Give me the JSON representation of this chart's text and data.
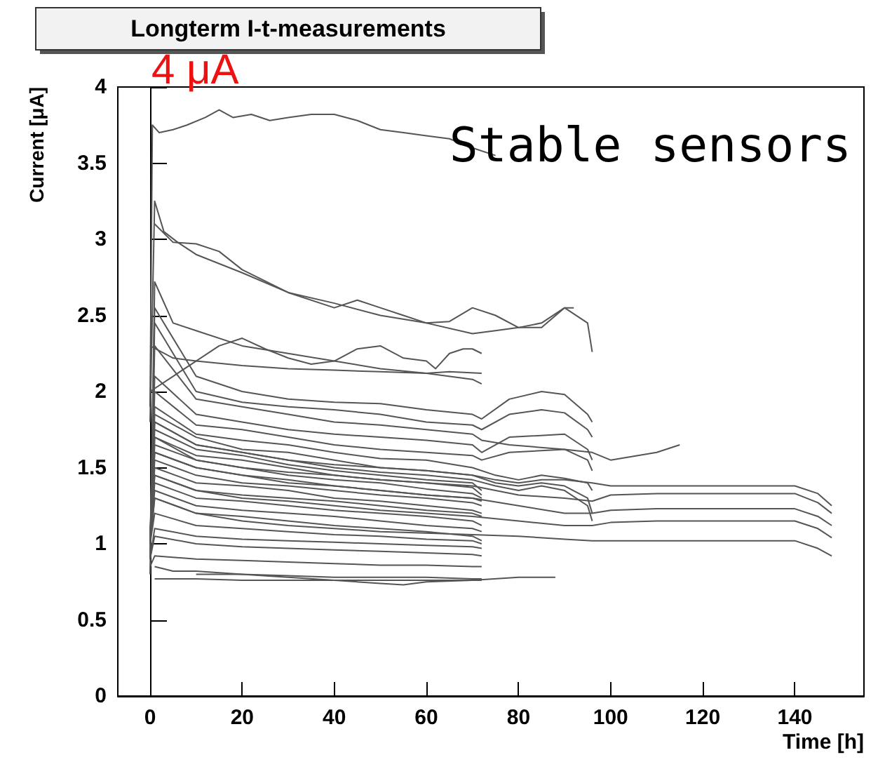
{
  "chart_data": {
    "type": "line",
    "title": "Longterm I-t-measurements",
    "xlabel": "Time [h]",
    "ylabel": "Current [μA]",
    "annotations": [
      "4 μA",
      "Stable sensors"
    ],
    "marker": "none",
    "xlim": [
      -7,
      155
    ],
    "ylim": [
      0,
      4
    ],
    "xticks": [
      0,
      20,
      40,
      60,
      80,
      100,
      120,
      140
    ],
    "yticks": [
      0,
      0.5,
      1,
      1.5,
      2,
      2.5,
      3,
      3.5,
      4
    ],
    "series": [
      {
        "color": "#555555",
        "x": [
          0,
          0.5,
          2,
          5,
          8,
          12,
          15,
          18,
          22,
          26,
          30,
          35,
          40,
          45,
          50,
          55,
          60,
          65,
          70,
          75
        ],
        "values": [
          1.9,
          3.75,
          3.7,
          3.72,
          3.75,
          3.8,
          3.85,
          3.8,
          3.82,
          3.78,
          3.8,
          3.82,
          3.82,
          3.78,
          3.72,
          3.7,
          3.68,
          3.66,
          3.6,
          3.55
        ]
      },
      {
        "color": "#555555",
        "x": [
          0,
          1,
          3,
          6,
          10,
          20,
          30,
          40,
          50,
          60,
          70,
          75,
          80,
          85,
          90,
          95,
          96
        ],
        "values": [
          1.8,
          3.25,
          3.05,
          2.98,
          2.9,
          2.78,
          2.65,
          2.58,
          2.5,
          2.45,
          2.38,
          2.4,
          2.42,
          2.45,
          2.55,
          2.45,
          2.26
        ]
      },
      {
        "color": "#555555",
        "x": [
          1,
          5,
          10,
          15,
          20,
          30,
          40,
          45,
          50,
          55,
          60,
          65,
          70,
          75,
          80,
          85,
          90,
          92
        ],
        "values": [
          3.1,
          2.98,
          2.97,
          2.92,
          2.8,
          2.65,
          2.55,
          2.6,
          2.55,
          2.5,
          2.45,
          2.46,
          2.55,
          2.5,
          2.42,
          2.42,
          2.55,
          2.55
        ]
      },
      {
        "color": "#555555",
        "x": [
          0,
          1,
          5,
          10,
          20,
          30,
          40,
          50,
          60,
          70,
          72
        ],
        "values": [
          0.8,
          2.72,
          2.45,
          2.4,
          2.3,
          2.25,
          2.2,
          2.15,
          2.12,
          2.08,
          2.05
        ]
      },
      {
        "color": "#555555",
        "x": [
          0,
          5,
          10,
          15,
          20,
          25,
          30,
          35,
          40,
          45,
          50,
          55,
          60,
          62,
          65,
          68,
          70,
          72
        ],
        "values": [
          2.0,
          2.1,
          2.2,
          2.3,
          2.35,
          2.28,
          2.22,
          2.18,
          2.2,
          2.28,
          2.3,
          2.22,
          2.2,
          2.15,
          2.25,
          2.28,
          2.28,
          2.25
        ]
      },
      {
        "color": "#555555",
        "x": [
          0,
          5,
          10,
          20,
          30,
          40,
          50,
          60,
          65,
          72
        ],
        "values": [
          2.3,
          2.22,
          2.2,
          2.17,
          2.15,
          2.14,
          2.13,
          2.12,
          2.13,
          2.12
        ]
      },
      {
        "color": "#555555",
        "x": [
          0,
          1,
          10,
          20,
          30,
          40,
          50,
          60,
          70,
          72,
          78,
          85,
          90,
          95,
          96
        ],
        "values": [
          0.9,
          2.55,
          2.1,
          2.0,
          1.95,
          1.93,
          1.92,
          1.88,
          1.85,
          1.82,
          1.95,
          2.0,
          1.98,
          1.85,
          1.8
        ]
      },
      {
        "color": "#555555",
        "x": [
          0,
          1,
          10,
          20,
          30,
          40,
          50,
          60,
          70,
          72,
          78,
          85,
          90,
          95,
          96
        ],
        "values": [
          0.9,
          2.45,
          2.0,
          1.93,
          1.9,
          1.88,
          1.85,
          1.8,
          1.78,
          1.75,
          1.85,
          1.88,
          1.86,
          1.75,
          1.7
        ]
      },
      {
        "color": "#555555",
        "x": [
          0,
          1,
          10,
          20,
          30,
          40,
          50,
          60,
          70,
          72,
          78,
          90,
          96,
          100,
          110,
          115
        ],
        "values": [
          1.0,
          2.3,
          1.95,
          1.9,
          1.85,
          1.8,
          1.78,
          1.75,
          1.72,
          1.68,
          1.65,
          1.62,
          1.6,
          1.55,
          1.6,
          1.65
        ]
      },
      {
        "color": "#555555",
        "x": [
          0,
          1,
          10,
          20,
          30,
          40,
          50,
          60,
          70,
          72,
          78,
          90,
          95,
          96
        ],
        "values": [
          1.0,
          2.1,
          1.85,
          1.8,
          1.75,
          1.72,
          1.7,
          1.68,
          1.65,
          1.6,
          1.7,
          1.72,
          1.62,
          1.55
        ]
      },
      {
        "color": "#555555",
        "x": [
          0,
          1,
          10,
          20,
          30,
          40,
          50,
          60,
          70,
          72,
          78,
          90,
          95,
          96
        ],
        "values": [
          1.0,
          2.0,
          1.78,
          1.75,
          1.7,
          1.65,
          1.62,
          1.6,
          1.58,
          1.55,
          1.6,
          1.62,
          1.55,
          1.48
        ]
      },
      {
        "color": "#555555",
        "x": [
          0,
          1,
          10,
          20,
          30,
          40,
          50,
          60,
          70,
          75,
          80,
          85,
          90,
          95,
          96
        ],
        "values": [
          1.0,
          1.9,
          1.72,
          1.68,
          1.65,
          1.6,
          1.56,
          1.55,
          1.5,
          1.45,
          1.42,
          1.45,
          1.43,
          1.4,
          1.35
        ]
      },
      {
        "color": "#555555",
        "x": [
          0,
          1,
          10,
          20,
          30,
          40,
          50,
          60,
          70,
          75,
          80,
          85,
          90,
          95,
          96
        ],
        "values": [
          1.0,
          1.85,
          1.7,
          1.62,
          1.6,
          1.55,
          1.5,
          1.48,
          1.45,
          1.4,
          1.38,
          1.4,
          1.38,
          1.3,
          1.2
        ]
      },
      {
        "color": "#555555",
        "x": [
          0,
          1,
          10,
          20,
          30,
          40,
          50,
          60,
          70,
          75,
          80,
          85,
          90,
          95,
          96
        ],
        "values": [
          1.0,
          1.8,
          1.65,
          1.6,
          1.55,
          1.5,
          1.47,
          1.45,
          1.42,
          1.38,
          1.35,
          1.38,
          1.35,
          1.25,
          1.15
        ]
      },
      {
        "color": "#555555",
        "x": [
          0,
          1,
          10,
          20,
          30,
          40,
          50,
          60,
          70,
          72
        ],
        "values": [
          1.0,
          1.75,
          1.62,
          1.58,
          1.52,
          1.48,
          1.45,
          1.42,
          1.4,
          1.35
        ]
      },
      {
        "color": "#555555",
        "x": [
          0,
          1,
          10,
          20,
          30,
          40,
          50,
          60,
          70,
          72
        ],
        "values": [
          1.0,
          1.7,
          1.58,
          1.55,
          1.5,
          1.45,
          1.42,
          1.4,
          1.37,
          1.32
        ]
      },
      {
        "color": "#555555",
        "x": [
          0,
          1,
          10,
          20,
          30,
          40,
          50,
          60,
          70,
          72
        ],
        "values": [
          1.0,
          1.65,
          1.55,
          1.5,
          1.45,
          1.42,
          1.4,
          1.36,
          1.33,
          1.3
        ]
      },
      {
        "color": "#555555",
        "x": [
          0,
          1,
          10,
          20,
          30,
          40,
          50,
          60,
          70,
          72
        ],
        "values": [
          1.0,
          1.6,
          1.5,
          1.45,
          1.42,
          1.38,
          1.35,
          1.32,
          1.3,
          1.28
        ]
      },
      {
        "color": "#555555",
        "x": [
          0,
          1,
          10,
          20,
          30,
          40,
          50,
          60,
          70,
          72
        ],
        "values": [
          1.0,
          1.55,
          1.45,
          1.4,
          1.38,
          1.35,
          1.32,
          1.3,
          1.27,
          1.25
        ]
      },
      {
        "color": "#555555",
        "x": [
          0,
          1,
          10,
          20,
          30,
          40,
          50,
          60,
          70,
          72
        ],
        "values": [
          1.0,
          1.5,
          1.4,
          1.38,
          1.35,
          1.3,
          1.28,
          1.25,
          1.22,
          1.2
        ]
      },
      {
        "color": "#555555",
        "x": [
          0,
          1,
          10,
          20,
          30,
          40,
          50,
          60,
          70,
          72
        ],
        "values": [
          1.0,
          1.45,
          1.35,
          1.32,
          1.3,
          1.28,
          1.25,
          1.22,
          1.2,
          1.18
        ]
      },
      {
        "color": "#555555",
        "x": [
          0,
          1,
          10,
          20,
          30,
          40,
          50,
          60,
          70,
          72
        ],
        "values": [
          1.0,
          1.4,
          1.3,
          1.28,
          1.25,
          1.22,
          1.2,
          1.18,
          1.15,
          1.12
        ]
      },
      {
        "color": "#555555",
        "x": [
          0,
          1,
          10,
          20,
          30,
          40,
          50,
          60,
          70,
          72
        ],
        "values": [
          1.0,
          1.35,
          1.25,
          1.22,
          1.2,
          1.18,
          1.15,
          1.12,
          1.1,
          1.08
        ]
      },
      {
        "color": "#555555",
        "x": [
          0,
          1,
          10,
          20,
          30,
          40,
          50,
          60,
          70,
          72
        ],
        "values": [
          1.0,
          1.3,
          1.2,
          1.18,
          1.15,
          1.12,
          1.1,
          1.08,
          1.05,
          1.02
        ]
      },
      {
        "color": "#555555",
        "x": [
          0,
          1,
          10,
          20,
          30,
          40,
          50,
          60,
          70,
          72
        ],
        "values": [
          1.0,
          1.2,
          1.12,
          1.1,
          1.08,
          1.06,
          1.05,
          1.03,
          1.02,
          1.0
        ]
      },
      {
        "color": "#555555",
        "x": [
          0,
          1,
          10,
          20,
          30,
          40,
          50,
          60,
          70,
          72
        ],
        "values": [
          0.9,
          1.1,
          1.05,
          1.03,
          1.02,
          1.01,
          1.0,
          0.99,
          0.98,
          0.97
        ]
      },
      {
        "color": "#555555",
        "x": [
          0,
          1,
          10,
          20,
          30,
          40,
          50,
          60,
          70,
          72
        ],
        "values": [
          0.9,
          1.05,
          1.0,
          0.98,
          0.97,
          0.96,
          0.95,
          0.94,
          0.93,
          0.92
        ]
      },
      {
        "color": "#555555",
        "x": [
          0,
          1,
          10,
          20,
          30,
          40,
          50,
          60,
          70,
          72
        ],
        "values": [
          0.85,
          0.92,
          0.9,
          0.89,
          0.88,
          0.87,
          0.86,
          0.86,
          0.85,
          0.85
        ]
      },
      {
        "color": "#555555",
        "x": [
          1,
          5,
          10,
          20,
          30,
          40,
          50,
          60,
          70,
          72
        ],
        "values": [
          0.85,
          0.82,
          0.82,
          0.8,
          0.79,
          0.78,
          0.78,
          0.78,
          0.77,
          0.77
        ]
      },
      {
        "color": "#555555",
        "x": [
          1,
          10,
          20,
          30,
          40,
          50,
          60,
          70,
          72
        ],
        "values": [
          0.77,
          0.77,
          0.76,
          0.76,
          0.76,
          0.76,
          0.76,
          0.76,
          0.76
        ]
      },
      {
        "color": "#555555",
        "x": [
          10,
          20,
          30,
          40,
          50,
          55,
          60,
          70,
          80,
          88
        ],
        "values": [
          0.8,
          0.8,
          0.78,
          0.76,
          0.74,
          0.73,
          0.75,
          0.76,
          0.78,
          0.78
        ]
      },
      {
        "color": "#555555",
        "x": [
          0,
          1,
          10,
          20,
          30,
          40,
          50,
          60,
          70,
          75,
          80,
          85,
          90,
          96,
          100,
          110,
          120,
          130,
          140,
          145,
          148
        ],
        "values": [
          1.0,
          1.8,
          1.65,
          1.6,
          1.55,
          1.52,
          1.5,
          1.48,
          1.45,
          1.42,
          1.4,
          1.42,
          1.42,
          1.4,
          1.38,
          1.38,
          1.38,
          1.38,
          1.38,
          1.33,
          1.25
        ]
      },
      {
        "color": "#555555",
        "x": [
          0,
          1,
          10,
          20,
          30,
          40,
          50,
          60,
          70,
          75,
          80,
          90,
          96,
          100,
          110,
          120,
          130,
          140,
          145,
          148
        ],
        "values": [
          1.0,
          1.7,
          1.55,
          1.5,
          1.47,
          1.45,
          1.42,
          1.4,
          1.38,
          1.35,
          1.32,
          1.3,
          1.28,
          1.32,
          1.33,
          1.33,
          1.33,
          1.33,
          1.27,
          1.2
        ]
      },
      {
        "color": "#555555",
        "x": [
          0,
          1,
          10,
          20,
          30,
          40,
          50,
          60,
          70,
          80,
          90,
          96,
          100,
          110,
          120,
          130,
          140,
          145,
          148
        ],
        "values": [
          1.0,
          1.6,
          1.5,
          1.45,
          1.4,
          1.38,
          1.35,
          1.32,
          1.3,
          1.25,
          1.2,
          1.2,
          1.22,
          1.23,
          1.23,
          1.23,
          1.23,
          1.18,
          1.12
        ]
      },
      {
        "color": "#555555",
        "x": [
          0,
          1,
          10,
          20,
          30,
          40,
          50,
          60,
          70,
          80,
          90,
          96,
          100,
          110,
          120,
          130,
          140,
          145,
          148
        ],
        "values": [
          1.0,
          1.45,
          1.35,
          1.3,
          1.28,
          1.25,
          1.22,
          1.2,
          1.18,
          1.15,
          1.12,
          1.12,
          1.14,
          1.15,
          1.15,
          1.15,
          1.15,
          1.1,
          1.04
        ]
      },
      {
        "color": "#555555",
        "x": [
          0,
          1,
          10,
          20,
          30,
          40,
          50,
          60,
          70,
          80,
          90,
          96,
          100,
          110,
          120,
          130,
          140,
          145,
          148
        ],
        "values": [
          1.0,
          1.3,
          1.2,
          1.15,
          1.12,
          1.1,
          1.08,
          1.07,
          1.06,
          1.05,
          1.03,
          1.02,
          1.02,
          1.02,
          1.02,
          1.02,
          1.02,
          0.97,
          0.92
        ]
      }
    ]
  }
}
